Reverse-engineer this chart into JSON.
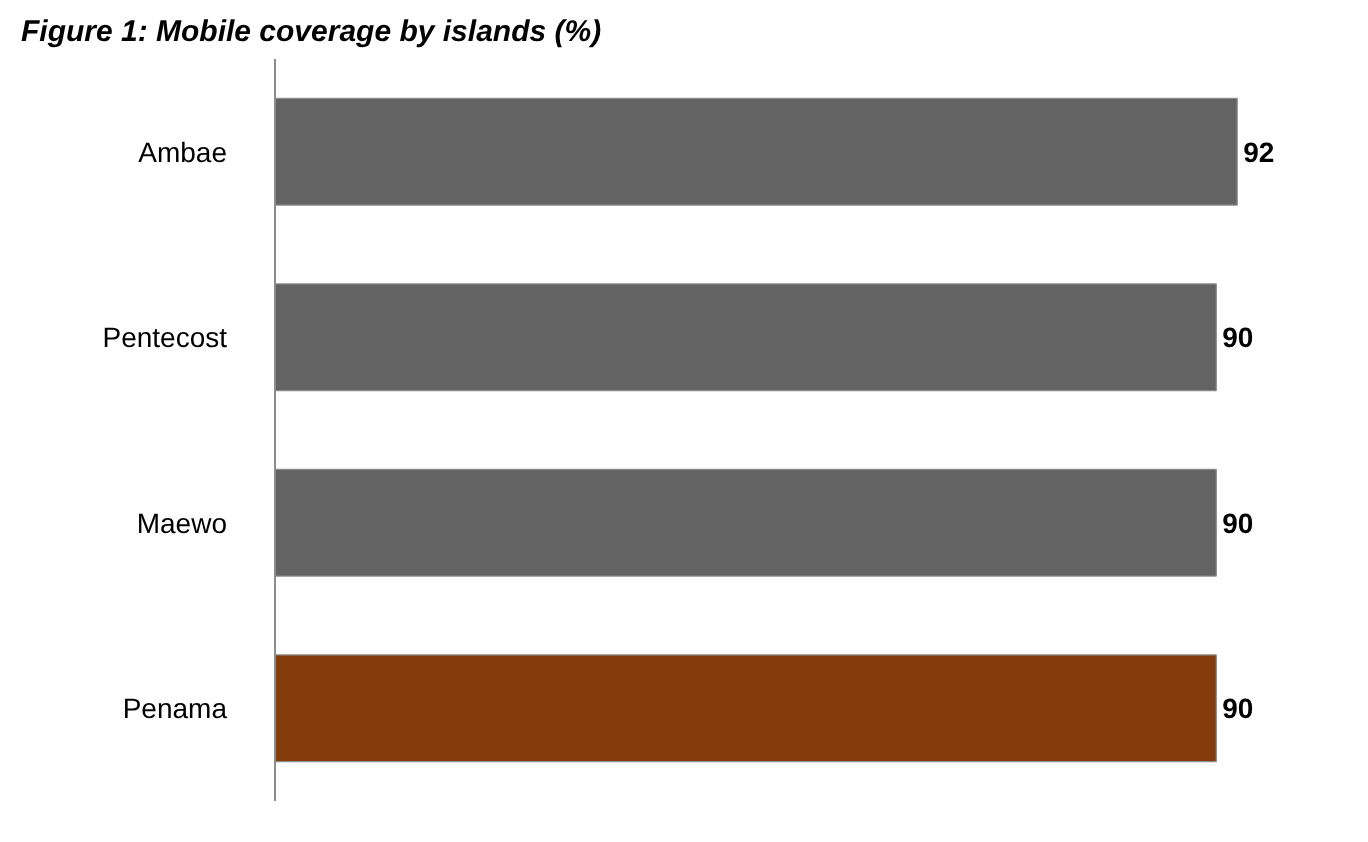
{
  "chart_data": {
    "type": "bar",
    "title": "Figure 1: Mobile coverage by islands (%)",
    "orientation": "horizontal",
    "categories": [
      "Ambae",
      "Pentecost",
      "Maewo",
      "Penama"
    ],
    "values": [
      92,
      90,
      90,
      90
    ],
    "colors": [
      "#636363",
      "#636363",
      "#636363",
      "#843c0c"
    ],
    "tick_labels": "y",
    "data_labels": true
  }
}
